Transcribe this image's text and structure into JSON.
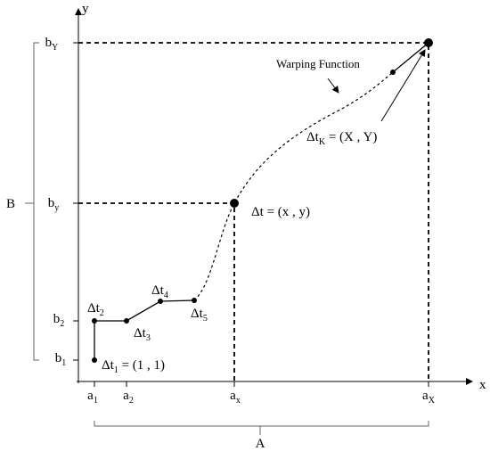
{
  "axes": {
    "x": "x",
    "y": "y"
  },
  "y_labels": [
    {
      "base": "b",
      "sub": "Y"
    },
    {
      "base": "b",
      "sub": "y"
    },
    {
      "base": "b",
      "sub": "2"
    },
    {
      "base": "b",
      "sub": "1"
    }
  ],
  "x_labels": [
    {
      "base": "a",
      "sub": "1"
    },
    {
      "base": "a",
      "sub": "2"
    },
    {
      "base": "a",
      "sub": "x"
    },
    {
      "base": "a",
      "sub": "X"
    }
  ],
  "brackets": {
    "left": "B",
    "bottom": "A"
  },
  "annotations": {
    "curve": "Warping Function",
    "end": {
      "base": "Δt",
      "sub": "K",
      "rest": " = (X , Y)"
    },
    "mid": "Δt = (x , y)",
    "start": {
      "base": "Δt",
      "sub": "1",
      "rest": " = (1 , 1)"
    }
  },
  "points": [
    {
      "base": "Δt",
      "sub": "2"
    },
    {
      "base": "Δt",
      "sub": "3"
    },
    {
      "base": "Δt",
      "sub": "4"
    },
    {
      "base": "Δt",
      "sub": "5"
    }
  ]
}
